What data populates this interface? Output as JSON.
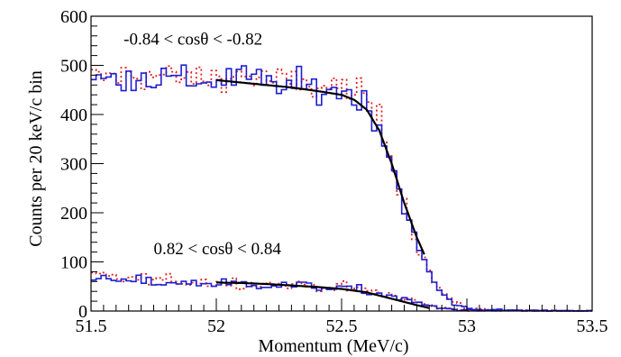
{
  "chart_data": {
    "type": "line",
    "xlabel": "Momentum (MeV/c)",
    "ylabel": "Counts per 20 keV/c bin",
    "xlim": [
      51.5,
      53.5
    ],
    "ylim": [
      0,
      600
    ],
    "x_ticks": [
      51.5,
      52,
      52.5,
      53,
      53.5
    ],
    "x_tick_labels": [
      "51.5",
      "52",
      "52.5",
      "53",
      "53.5"
    ],
    "y_ticks": [
      0,
      100,
      200,
      300,
      400,
      500,
      600
    ],
    "y_tick_labels": [
      "0",
      "100",
      "200",
      "300",
      "400",
      "500",
      "600"
    ],
    "grid": false,
    "legend": "none",
    "annotations": [
      {
        "text": "-0.84 < cosθ < -0.82",
        "x": 51.63,
        "y": 542
      },
      {
        "text": "0.82 < cosθ < 0.84",
        "x": 51.75,
        "y": 116
      }
    ],
    "colors": {
      "data": "#1f1fd0",
      "mc": "#e02020",
      "fit": "#000000",
      "axis": "#000000"
    },
    "series": [
      {
        "style": "blue-histogram",
        "group": "backward",
        "x": [
          51.5,
          51.6,
          51.7,
          51.8,
          51.9,
          52.0,
          52.1,
          52.2,
          52.3,
          52.4,
          52.5,
          52.55,
          52.6,
          52.65,
          52.7,
          52.75,
          52.8,
          52.85,
          52.9,
          52.95,
          53.0,
          53.1,
          53.5
        ],
        "values": [
          465,
          475,
          480,
          472,
          468,
          470,
          478,
          462,
          458,
          452,
          448,
          438,
          420,
          380,
          300,
          215,
          135,
          75,
          35,
          15,
          6,
          2,
          0
        ]
      },
      {
        "style": "red-dotted-histogram",
        "group": "backward",
        "x": [
          51.5,
          51.6,
          51.7,
          51.8,
          51.9,
          52.0,
          52.1,
          52.2,
          52.3,
          52.4,
          52.5,
          52.55,
          52.6,
          52.65,
          52.7,
          52.75,
          52.8,
          52.85,
          52.9,
          52.95,
          53.0,
          53.1,
          53.5
        ],
        "values": [
          470,
          478,
          482,
          476,
          472,
          475,
          480,
          470,
          462,
          458,
          455,
          445,
          428,
          390,
          310,
          225,
          142,
          80,
          38,
          16,
          6,
          2,
          0
        ]
      },
      {
        "style": "black-fit",
        "group": "backward",
        "x": [
          52.0,
          52.1,
          52.2,
          52.3,
          52.4,
          52.5,
          52.55,
          52.6,
          52.65,
          52.7,
          52.75,
          52.8,
          52.83
        ],
        "values": [
          470,
          465,
          460,
          455,
          448,
          440,
          430,
          410,
          368,
          300,
          220,
          150,
          115
        ]
      },
      {
        "style": "blue-histogram",
        "group": "forward",
        "x": [
          51.5,
          51.6,
          51.7,
          51.8,
          51.9,
          52.0,
          52.1,
          52.2,
          52.3,
          52.4,
          52.5,
          52.6,
          52.7,
          52.8,
          52.85,
          52.9,
          53.0,
          53.1,
          53.5
        ],
        "values": [
          65,
          62,
          60,
          58,
          57,
          56,
          55,
          54,
          52,
          50,
          46,
          40,
          30,
          17,
          10,
          5,
          2,
          1,
          0
        ]
      },
      {
        "style": "red-dotted-histogram",
        "group": "forward",
        "x": [
          51.5,
          51.6,
          51.7,
          51.8,
          51.9,
          52.0,
          52.1,
          52.2,
          52.3,
          52.4,
          52.5,
          52.6,
          52.7,
          52.8,
          52.85,
          52.9,
          53.0,
          53.1,
          53.5
        ],
        "values": [
          72,
          68,
          64,
          62,
          60,
          58,
          57,
          55,
          53,
          51,
          48,
          42,
          32,
          19,
          11,
          6,
          2,
          1,
          0
        ]
      },
      {
        "style": "black-fit",
        "group": "forward",
        "x": [
          52.0,
          52.1,
          52.2,
          52.3,
          52.4,
          52.5,
          52.6,
          52.7,
          52.8,
          52.85
        ],
        "values": [
          58,
          57,
          55,
          52,
          49,
          45,
          38,
          25,
          12,
          6
        ]
      }
    ]
  }
}
